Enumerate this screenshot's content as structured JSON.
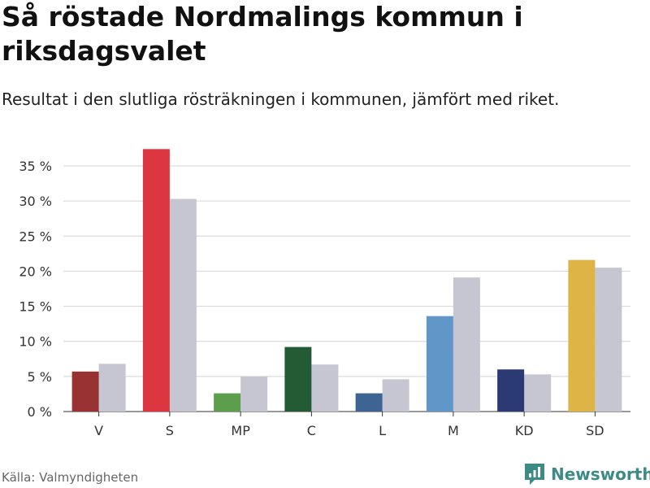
{
  "chart_data": {
    "type": "bar",
    "title": "Så röstade Nordmalings kommun i riksdagsvalet",
    "subtitle": "Resultat i den slutliga rösträkningen i kommunen, jämfört med riket.",
    "categories": [
      "V",
      "S",
      "MP",
      "C",
      "L",
      "M",
      "KD",
      "SD"
    ],
    "series": [
      {
        "name": "Nordmalings kommun",
        "values": [
          5.7,
          37.4,
          2.6,
          9.2,
          2.6,
          13.6,
          6.0,
          21.6
        ],
        "colors": [
          "#993333",
          "#dc3640",
          "#5c9e4c",
          "#235c34",
          "#3e6494",
          "#6096c8",
          "#2c3a74",
          "#deb446"
        ]
      },
      {
        "name": "Riket",
        "values": [
          6.8,
          30.3,
          5.0,
          6.7,
          4.6,
          19.1,
          5.3,
          20.5
        ],
        "color": "#c6c6d2"
      }
    ],
    "ylim": [
      0,
      35
    ],
    "yticks": [
      0,
      5,
      10,
      15,
      20,
      25,
      30,
      35
    ],
    "ytick_suffix": " %",
    "grid": true,
    "xlabel": "",
    "ylabel": ""
  },
  "footer": {
    "source": "Källa: Valmyndigheten",
    "brand": "Newsworthy",
    "brand_color": "#3d8a86"
  }
}
